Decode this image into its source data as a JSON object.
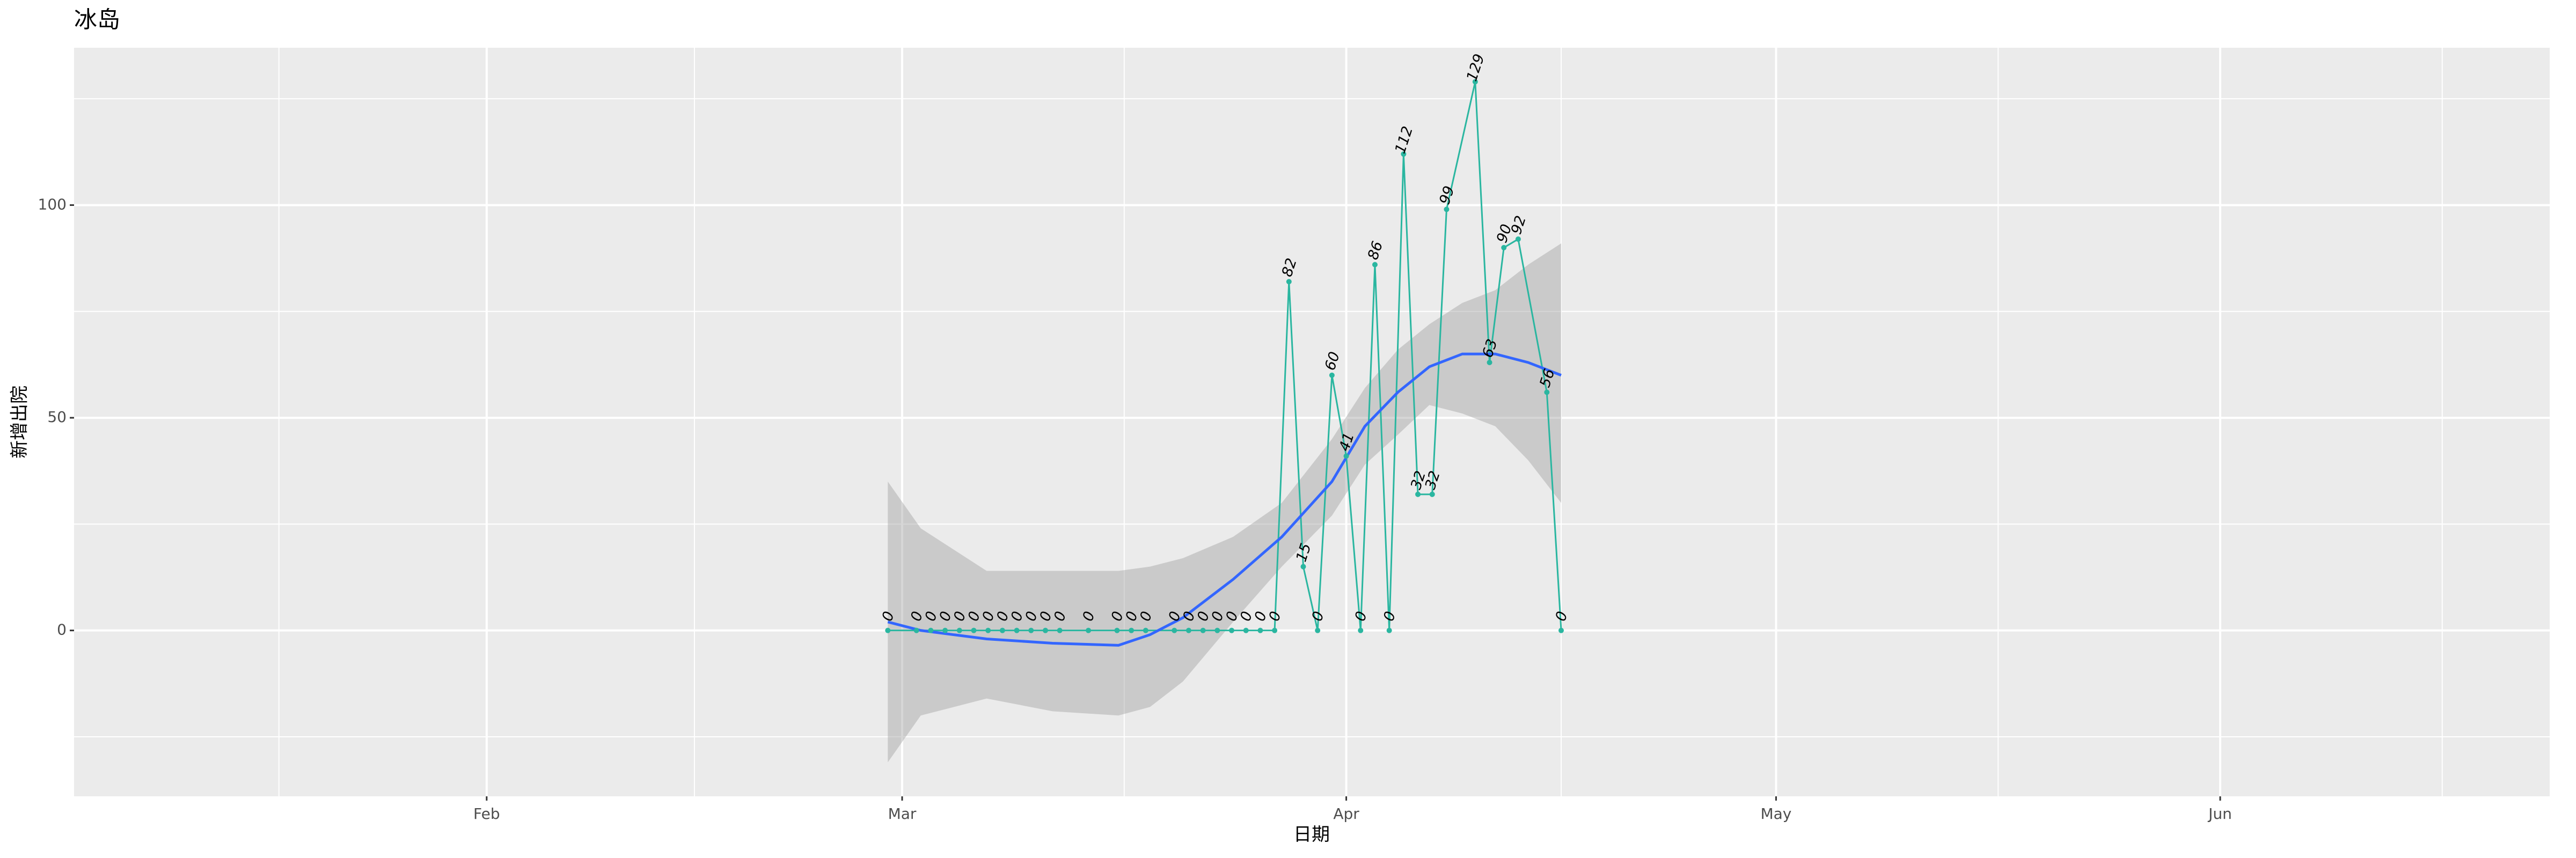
{
  "chart_data": {
    "type": "line",
    "title": "冰岛",
    "x_label": "日期",
    "y_label": "新增出院",
    "x": [
      60,
      62,
      63,
      64,
      65,
      66,
      67,
      68,
      69,
      70,
      71,
      72,
      74,
      76,
      77,
      78,
      80,
      81,
      82,
      83,
      84,
      85,
      86,
      87,
      88,
      89,
      90,
      91,
      92,
      93,
      94,
      95,
      96,
      97,
      98,
      99,
      101,
      102,
      103,
      104,
      106,
      107
    ],
    "values": [
      0,
      0,
      0,
      0,
      0,
      0,
      0,
      0,
      0,
      0,
      0,
      0,
      0,
      0,
      0,
      0,
      0,
      0,
      0,
      0,
      0,
      0,
      0,
      0,
      82,
      15,
      0,
      60,
      41,
      0,
      86,
      0,
      112,
      32,
      32,
      99,
      129,
      63,
      90,
      92,
      56,
      0
    ],
    "color": "#2ab6a0",
    "smooth": {
      "color": "#3366ff",
      "fill": "#999999",
      "x": [
        60,
        62.3,
        66.9,
        71.5,
        76.1,
        78.3,
        80.6,
        84.1,
        87.5,
        91,
        93.3,
        95.6,
        97.8,
        100.1,
        102.4,
        104.7,
        107
      ],
      "y": [
        2,
        0,
        -2,
        -3,
        -3.5,
        -1,
        3,
        12,
        22,
        35,
        48,
        56,
        62,
        65,
        65,
        63,
        60
      ],
      "ymin": [
        -31,
        -20,
        -16,
        -19,
        -20,
        -18,
        -12,
        2,
        15,
        27,
        39,
        46,
        53,
        51,
        48,
        40,
        30
      ],
      "ymax": [
        35,
        24,
        14,
        14,
        14,
        15,
        17,
        22,
        30,
        45,
        57,
        66,
        72,
        77,
        80,
        86,
        91
      ]
    },
    "xlim": [
      3.2,
      176
    ],
    "xticks": [
      {
        "value": 32,
        "label": "Feb"
      },
      {
        "value": 61,
        "label": "Mar"
      },
      {
        "value": 92,
        "label": "Apr"
      },
      {
        "value": 122,
        "label": "May"
      },
      {
        "value": 153,
        "label": "Jun"
      }
    ],
    "xminor": [
      17.5,
      46.5,
      76.5,
      107,
      137.5,
      168.5
    ],
    "ylim": [
      -39,
      137
    ],
    "yticks": [
      0,
      50,
      100
    ],
    "yminor": [
      -25,
      25,
      75,
      125
    ],
    "grid": true
  }
}
